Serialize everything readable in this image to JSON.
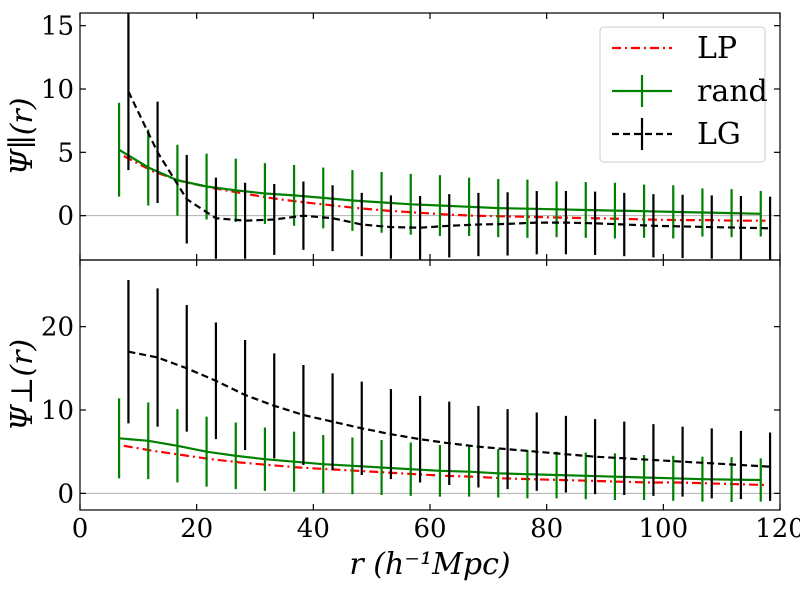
{
  "chart_data": {
    "type": "line",
    "xlabel": "r (h⁻¹Mpc)",
    "xlim": [
      0,
      120
    ],
    "xticks": [
      0,
      20,
      40,
      60,
      80,
      100,
      120
    ],
    "legend": {
      "position": "top-right",
      "entries": [
        "LP",
        "rand",
        "LG"
      ]
    },
    "colors": {
      "LP": "#ff0000",
      "rand": "#008000",
      "LG": "#000000",
      "zero_line": "#b0b0b0"
    },
    "panels": [
      {
        "name": "parallel",
        "ylabel": "Ψ∥(r)",
        "ylim": [
          -3.5,
          16
        ],
        "yticks": [
          0,
          5,
          10,
          15
        ],
        "zero_line": true,
        "series": [
          {
            "name": "LP",
            "style": "dashdot",
            "offset": 0,
            "x": [
              7.5,
              12.5,
              17.5,
              22.5,
              27.5,
              32.5,
              37.5,
              42.5,
              47.5,
              52.5,
              57.5,
              62.5,
              67.5,
              72.5,
              77.5,
              82.5,
              87.5,
              92.5,
              97.5,
              102.5,
              107.5,
              112.5,
              117.5
            ],
            "y": [
              4.7,
              3.5,
              2.7,
              2.2,
              1.8,
              1.4,
              1.1,
              0.85,
              0.6,
              0.4,
              0.25,
              0.1,
              0.0,
              -0.05,
              -0.1,
              -0.15,
              -0.2,
              -0.25,
              -0.3,
              -0.35,
              -0.35,
              -0.4,
              -0.4
            ]
          },
          {
            "name": "rand",
            "style": "solid",
            "offset": -0.8,
            "x": [
              7.5,
              12.5,
              17.5,
              22.5,
              27.5,
              32.5,
              37.5,
              42.5,
              47.5,
              52.5,
              57.5,
              62.5,
              67.5,
              72.5,
              77.5,
              82.5,
              87.5,
              92.5,
              97.5,
              102.5,
              107.5,
              112.5,
              117.5
            ],
            "y": [
              5.2,
              3.8,
              2.8,
              2.3,
              2.0,
              1.75,
              1.6,
              1.4,
              1.2,
              1.05,
              0.9,
              0.8,
              0.7,
              0.6,
              0.55,
              0.5,
              0.45,
              0.4,
              0.35,
              0.3,
              0.25,
              0.2,
              0.15
            ],
            "err": [
              3.7,
              3.0,
              2.8,
              2.6,
              2.5,
              2.4,
              2.4,
              2.4,
              2.4,
              2.4,
              2.4,
              2.4,
              2.3,
              2.3,
              2.3,
              2.2,
              2.2,
              2.2,
              2.1,
              2.1,
              1.9,
              1.9,
              1.8
            ]
          },
          {
            "name": "LG",
            "style": "dashed",
            "offset": 0.8,
            "x": [
              7.5,
              12.5,
              17.5,
              22.5,
              27.5,
              32.5,
              37.5,
              42.5,
              47.5,
              52.5,
              57.5,
              62.5,
              67.5,
              72.5,
              77.5,
              82.5,
              87.5,
              92.5,
              97.5,
              102.5,
              107.5,
              112.5,
              117.5
            ],
            "y": [
              9.8,
              5.0,
              1.3,
              -0.2,
              -0.4,
              -0.3,
              0.0,
              -0.2,
              -0.7,
              -0.9,
              -0.95,
              -0.8,
              -0.7,
              -0.65,
              -0.55,
              -0.55,
              -0.6,
              -0.7,
              -0.8,
              -0.85,
              -0.9,
              -0.95,
              -1.0
            ],
            "err": [
              6.2,
              4.0,
              3.5,
              3.2,
              3.0,
              2.8,
              2.7,
              2.6,
              2.5,
              2.5,
              2.5,
              2.5,
              2.5,
              2.5,
              2.5,
              2.5,
              2.5,
              2.5,
              2.5,
              2.5,
              2.5,
              2.5,
              2.5
            ]
          }
        ]
      },
      {
        "name": "perpendicular",
        "ylabel": "Ψ⊥(r)",
        "ylim": [
          -2,
          28
        ],
        "yticks": [
          0,
          10,
          20
        ],
        "zero_line": true,
        "series": [
          {
            "name": "LP",
            "style": "dashdot",
            "offset": 0,
            "x": [
              7.5,
              12.5,
              17.5,
              22.5,
              27.5,
              32.5,
              37.5,
              42.5,
              47.5,
              52.5,
              57.5,
              62.5,
              67.5,
              72.5,
              77.5,
              82.5,
              87.5,
              92.5,
              97.5,
              102.5,
              107.5,
              112.5,
              117.5
            ],
            "y": [
              5.7,
              5.1,
              4.6,
              4.1,
              3.7,
              3.4,
              3.1,
              2.9,
              2.7,
              2.5,
              2.3,
              2.1,
              2.0,
              1.8,
              1.7,
              1.6,
              1.5,
              1.4,
              1.3,
              1.3,
              1.2,
              1.1,
              1.0
            ]
          },
          {
            "name": "rand",
            "style": "solid",
            "offset": -0.8,
            "x": [
              7.5,
              12.5,
              17.5,
              22.5,
              27.5,
              32.5,
              37.5,
              42.5,
              47.5,
              52.5,
              57.5,
              62.5,
              67.5,
              72.5,
              77.5,
              82.5,
              87.5,
              92.5,
              97.5,
              102.5,
              107.5,
              112.5,
              117.5
            ],
            "y": [
              6.6,
              6.3,
              5.7,
              5.0,
              4.5,
              4.1,
              3.8,
              3.5,
              3.3,
              3.1,
              2.9,
              2.7,
              2.6,
              2.4,
              2.3,
              2.2,
              2.1,
              2.0,
              1.9,
              1.8,
              1.7,
              1.65,
              1.6
            ],
            "err": [
              4.8,
              4.6,
              4.4,
              4.2,
              4.0,
              3.8,
              3.6,
              3.5,
              3.4,
              3.3,
              3.2,
              3.1,
              3.0,
              2.9,
              2.9,
              2.8,
              2.8,
              2.8,
              2.7,
              2.7,
              2.7,
              2.7,
              2.6
            ]
          },
          {
            "name": "LG",
            "style": "dashed",
            "offset": 0.8,
            "x": [
              7.5,
              12.5,
              17.5,
              22.5,
              27.5,
              32.5,
              37.5,
              42.5,
              47.5,
              52.5,
              57.5,
              62.5,
              67.5,
              72.5,
              77.5,
              82.5,
              87.5,
              92.5,
              97.5,
              102.5,
              107.5,
              112.5,
              117.5
            ],
            "y": [
              17.0,
              16.3,
              15.0,
              13.5,
              11.8,
              10.5,
              9.4,
              8.6,
              7.8,
              7.1,
              6.5,
              6.0,
              5.6,
              5.3,
              5.0,
              4.7,
              4.4,
              4.2,
              4.0,
              3.8,
              3.6,
              3.4,
              3.2
            ],
            "err": [
              8.6,
              8.3,
              7.6,
              7.0,
              6.6,
              6.3,
              6.0,
              5.8,
              5.6,
              5.4,
              5.2,
              5.0,
              4.9,
              4.8,
              4.7,
              4.6,
              4.5,
              4.4,
              4.3,
              4.2,
              4.2,
              4.1,
              4.1
            ]
          }
        ]
      }
    ]
  }
}
